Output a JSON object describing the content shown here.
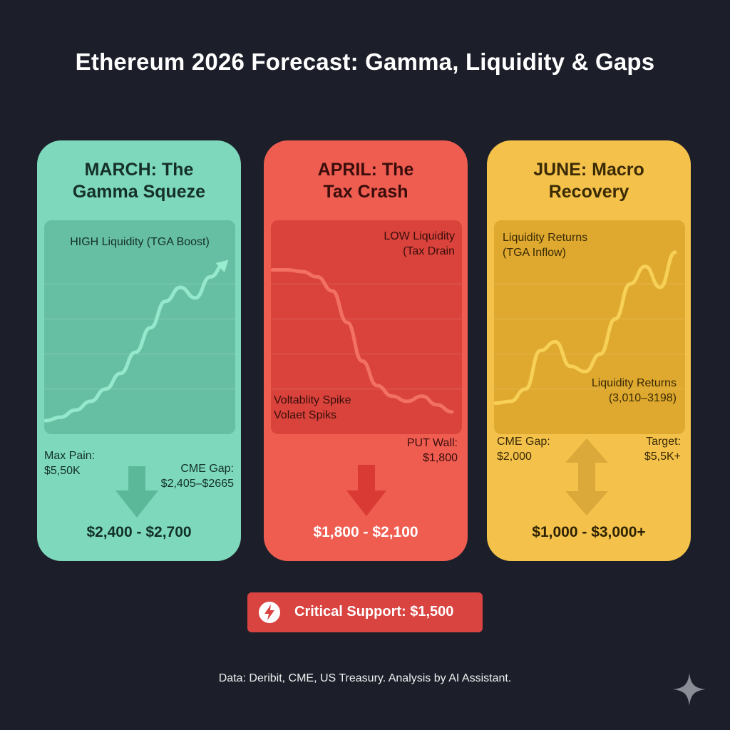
{
  "title": "Ethereum 2026 Forecast: Gamma, Liquidity & Gaps",
  "colors": {
    "background": "#1c1f2a",
    "march": "#7ed8bb",
    "april": "#ef5d51",
    "june": "#f4c24a",
    "badge": "#d94340"
  },
  "cards": [
    {
      "heading": "MARCH: The\nGamma Squeze",
      "panel_label": "HIGH Liquidity (TGA Boost)",
      "left_label": "Max Pain:\n$5,50K",
      "right_label": "CME Gap:\n$2,405–$2665",
      "range": "$2,400 - $2,700",
      "arrow_icon": "arrow-down-icon"
    },
    {
      "heading": "APRIL: The\nTax Crash",
      "panel_label": "LOW Liquidity\n(Tax Drain",
      "panel_label_2": "Voltablity Spike\nVolaet  Spiks",
      "right_label": "PUT Wall:\n$1,800",
      "range": "$1,800 - $2,100",
      "arrow_icon": "arrow-down-icon"
    },
    {
      "heading": "JUNE: Macro\nRecovery",
      "panel_label": "Liquidity Returns\n(TGA Inflow)",
      "panel_label_2": "Liquidity Returns\n(3,010–3198)",
      "left_label": "CME Gap:\n$2,000",
      "right_label": "Target:\n$5,5K+",
      "range": "$1,000 - $3,000+",
      "arrow_icon": "arrow-up-down-icon"
    }
  ],
  "badge": {
    "text": "Critical Support: $1,500",
    "icon": "lightning-icon"
  },
  "footer": "Data: Deribit, CME, US Treasury. Analysis by AI Assistant.",
  "chart_data": [
    {
      "type": "line",
      "title": "MARCH: The Gamma Squeze",
      "trend": "rising",
      "series": [
        {
          "values": [
            2,
            4,
            8,
            13,
            20,
            29,
            41,
            55,
            70,
            78,
            72,
            84,
            92
          ]
        }
      ],
      "ylim": [
        0,
        100
      ],
      "grid": true
    },
    {
      "type": "line",
      "title": "APRIL: The Tax Crash",
      "trend": "falling",
      "series": [
        {
          "values": [
            88,
            88,
            87,
            84,
            76,
            58,
            36,
            22,
            16,
            13,
            16,
            11,
            7
          ]
        }
      ],
      "ylim": [
        0,
        100
      ],
      "grid": true
    },
    {
      "type": "line",
      "title": "JUNE: Macro Recovery",
      "trend": "recovering",
      "series": [
        {
          "values": [
            12,
            13,
            20,
            42,
            47,
            33,
            30,
            40,
            60,
            80,
            90,
            78,
            98
          ]
        }
      ],
      "ylim": [
        0,
        100
      ],
      "grid": true
    }
  ]
}
